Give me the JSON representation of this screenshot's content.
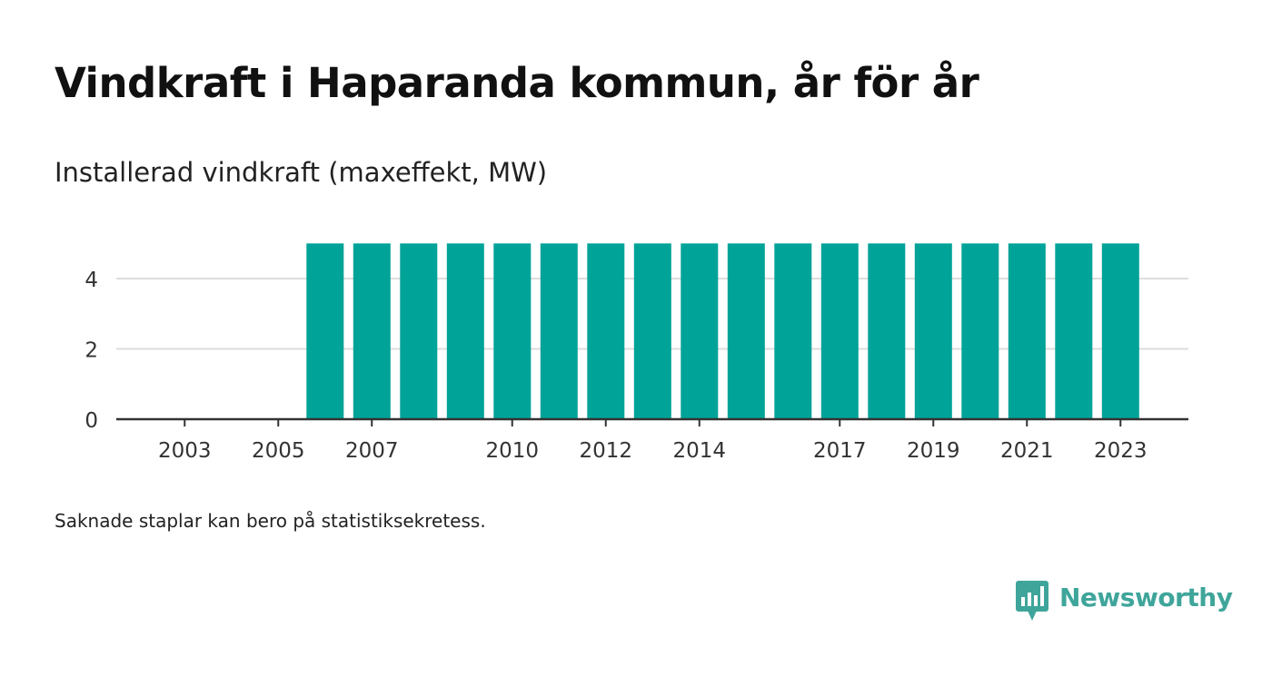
{
  "title": "Vindkraft i Haparanda kommun, år för år",
  "subtitle": "Installerad vindkraft (maxeffekt, MW)",
  "note": "Saknade staplar kan bero på statistiksekretess.",
  "brand": {
    "name": "Newsworthy",
    "color": "#3fa59b",
    "icon": "bar-chart-speech-bubble-icon"
  },
  "colors": {
    "bar": "#00a398",
    "grid": "#dddddd",
    "axis": "#333333",
    "text": "#333333"
  },
  "chart_data": {
    "type": "bar",
    "title": "Installerad vindkraft (maxeffekt, MW)",
    "xlabel": "",
    "ylabel": "",
    "categories": [
      "2002",
      "2003",
      "2004",
      "2005",
      "2006",
      "2007",
      "2008",
      "2009",
      "2010",
      "2011",
      "2012",
      "2013",
      "2014",
      "2015",
      "2016",
      "2017",
      "2018",
      "2019",
      "2020",
      "2021",
      "2022",
      "2023"
    ],
    "values": [
      null,
      null,
      null,
      null,
      5,
      5,
      5,
      5,
      5,
      5,
      5,
      5,
      5,
      5,
      5,
      5,
      5,
      5,
      5,
      5,
      5,
      5
    ],
    "x_tick_labels": [
      "2003",
      "2005",
      "2007",
      "2010",
      "2012",
      "2014",
      "2017",
      "2019",
      "2021",
      "2023"
    ],
    "y_ticks": [
      0,
      2,
      4
    ],
    "ylim": [
      0,
      5.5
    ],
    "grid": true,
    "legend": false
  }
}
